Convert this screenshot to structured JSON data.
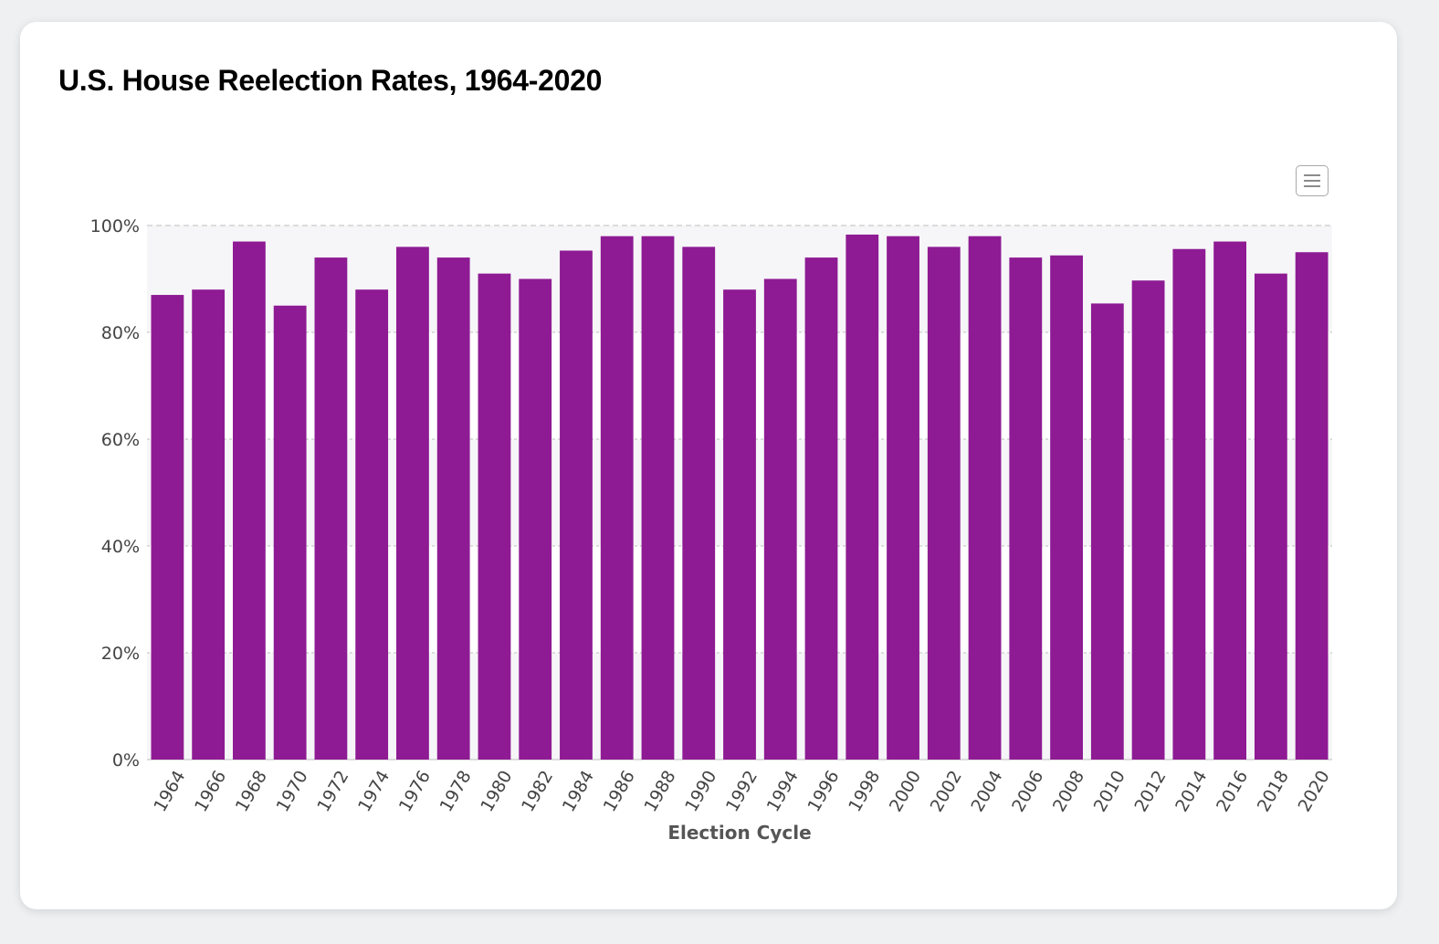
{
  "colors": {
    "bar": "#8e1b93",
    "grid": "#bdbdbd",
    "band": "#f6f6f8",
    "axis_text": "#444444"
  },
  "toolbar": {
    "menu_icon": "hamburger-menu-icon"
  },
  "chart_data": {
    "type": "bar",
    "title": "U.S. House Reelection Rates, 1964-2020",
    "xlabel": "Election Cycle",
    "ylabel": "",
    "ylim": [
      0,
      100
    ],
    "yticks": [
      "0%",
      "20%",
      "40%",
      "60%",
      "80%",
      "100%"
    ],
    "grid": true,
    "legend": "none",
    "categories": [
      "1964",
      "1966",
      "1968",
      "1970",
      "1972",
      "1974",
      "1976",
      "1978",
      "1980",
      "1982",
      "1984",
      "1986",
      "1988",
      "1990",
      "1992",
      "1994",
      "1996",
      "1998",
      "2000",
      "2002",
      "2004",
      "2006",
      "2008",
      "2010",
      "2012",
      "2014",
      "2016",
      "2018",
      "2020"
    ],
    "values": [
      87,
      88,
      97,
      85,
      94,
      88,
      96,
      94,
      91,
      90,
      95.3,
      98,
      98,
      96,
      88,
      90,
      94,
      98.3,
      98,
      96,
      98,
      94,
      94.4,
      85.4,
      89.7,
      95.6,
      97,
      91,
      95
    ]
  }
}
